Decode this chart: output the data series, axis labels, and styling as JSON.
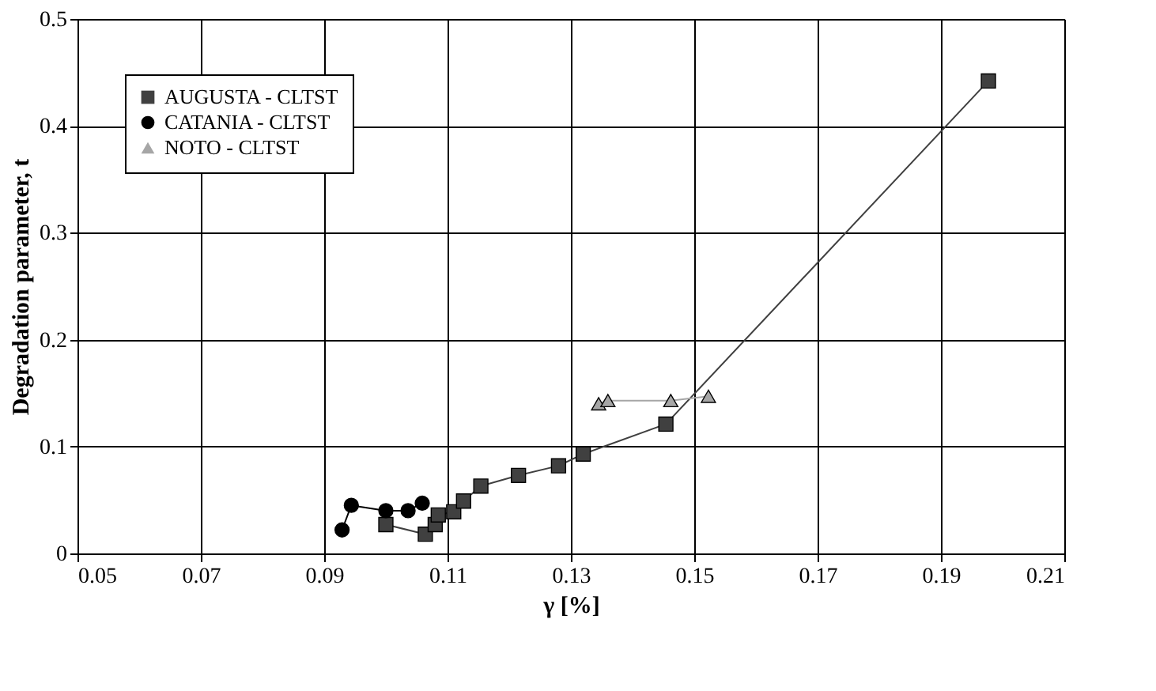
{
  "chart_data": {
    "type": "line",
    "xlabel": "γ [%]",
    "ylabel": "Degradation parameter, t",
    "xlim": [
      0.05,
      0.21
    ],
    "xticks": [
      0.05,
      0.07,
      0.09,
      0.11,
      0.13,
      0.15,
      0.17,
      0.19,
      0.21
    ],
    "ylim": [
      0,
      0.5
    ],
    "yticks": [
      0,
      0.1,
      0.2,
      0.3,
      0.4,
      0.5
    ],
    "grid": true,
    "legend": "top left",
    "line_style": "solid",
    "series": [
      {
        "name": "AUGUSTA - CLTST",
        "color": "#404040",
        "marker": "square",
        "x": [
          0.1,
          0.1064,
          0.108,
          0.1085,
          0.111,
          0.1126,
          0.1154,
          0.1215,
          0.128,
          0.132,
          0.1454,
          0.1977
        ],
        "values": [
          0.027,
          0.018,
          0.027,
          0.036,
          0.039,
          0.049,
          0.063,
          0.073,
          0.082,
          0.093,
          0.121,
          0.442
        ]
      },
      {
        "name": "CATANIA - CLTST",
        "color": "#000000",
        "marker": "circle",
        "x": [
          0.0929,
          0.0944,
          0.1,
          0.1036,
          0.1059
        ],
        "values": [
          0.022,
          0.045,
          0.04,
          0.04,
          0.047
        ]
      },
      {
        "name": "NOTO - CLTST",
        "color": "#a6a6a6",
        "marker": "triangle",
        "x": [
          0.1345,
          0.136,
          0.1462,
          0.1523
        ],
        "values": [
          0.14,
          0.143,
          0.143,
          0.147
        ]
      }
    ]
  }
}
